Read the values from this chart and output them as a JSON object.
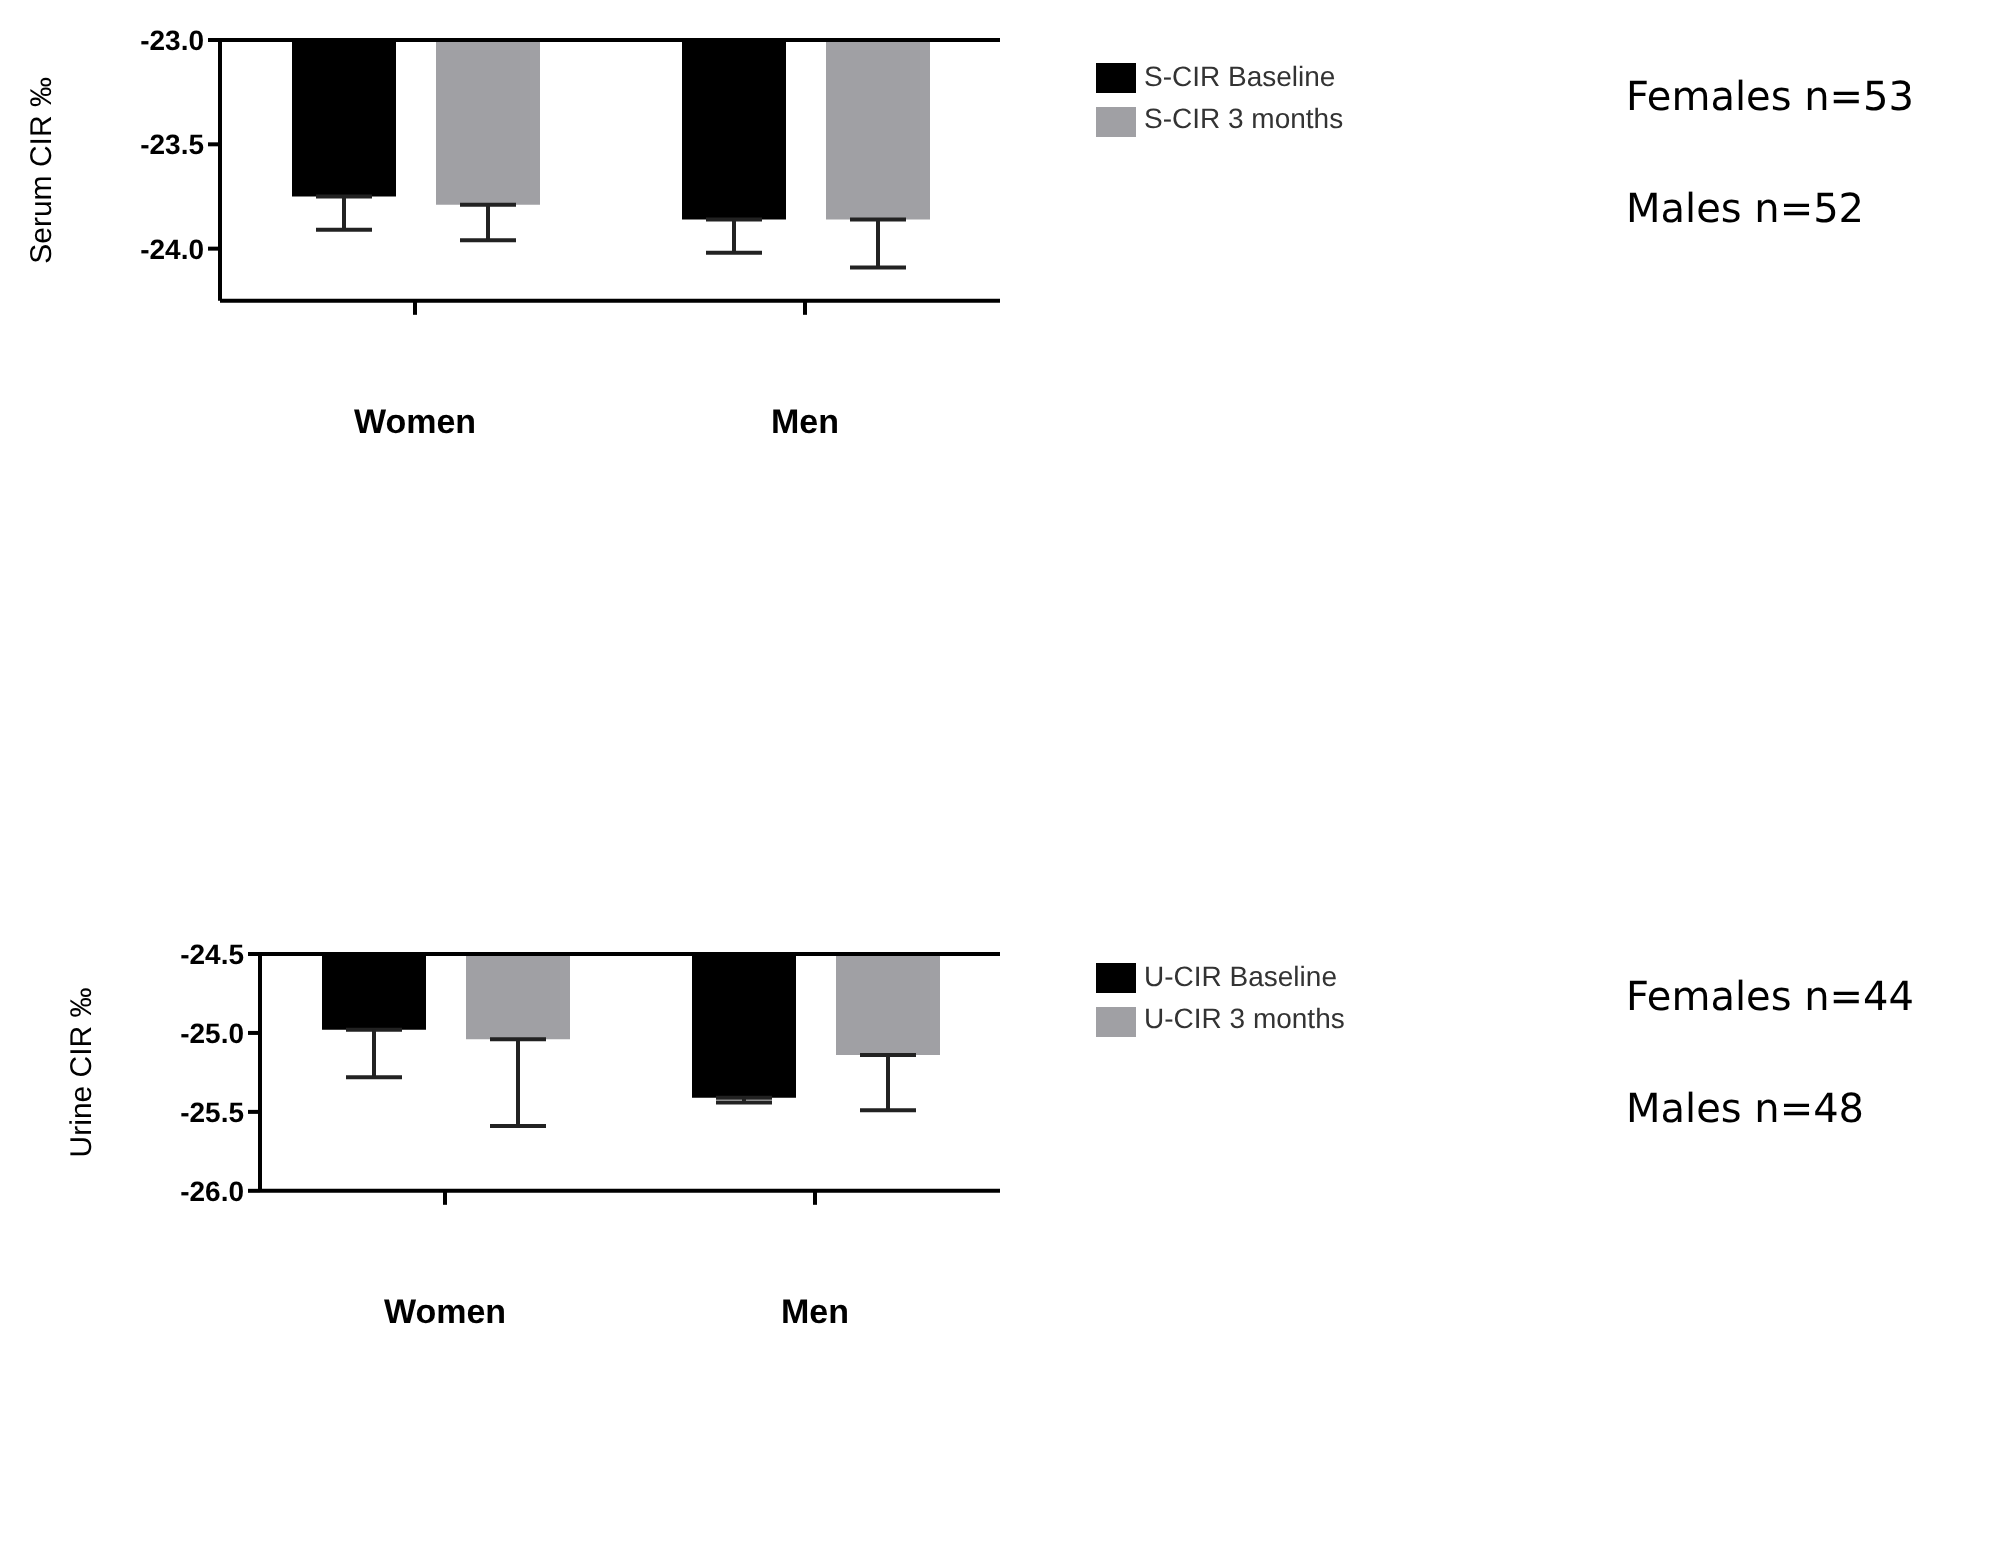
{
  "chart_data": [
    {
      "type": "bar",
      "ylabel": "Serum CIR ‰",
      "categories": [
        "Women",
        "Men"
      ],
      "series": [
        {
          "name": "S-CIR Baseline",
          "color": "#000000",
          "values": [
            -23.75,
            -23.86
          ],
          "errors": [
            [
              -23.91,
              -23.75
            ],
            [
              -24.02,
              -23.86
            ]
          ]
        },
        {
          "name": "S-CIR 3 months",
          "color": "#a0a0a4",
          "values": [
            -23.79,
            -23.86
          ],
          "errors": [
            [
              -23.96,
              -23.79
            ],
            [
              -24.09,
              -23.86
            ]
          ]
        }
      ],
      "ylim": [
        -24.25,
        -23.0
      ],
      "yticks": [
        {
          "value": -23.0,
          "label": "-23.0"
        },
        -23.5,
        {
          "value": -24.0,
          "label": "-24.0"
        }
      ],
      "grid": false,
      "legend": "right",
      "annotations": [
        "Females n=53",
        "Males n=52"
      ]
    },
    {
      "type": "bar",
      "ylabel": "Urine CIR ‰",
      "categories": [
        "Women",
        "Men"
      ],
      "series": [
        {
          "name": "U-CIR Baseline",
          "color": "#000000",
          "values": [
            -24.98,
            -25.41
          ],
          "errors": [
            [
              -25.28,
              -24.98
            ],
            [
              -25.44,
              -25.41
            ]
          ]
        },
        {
          "name": "U-CIR 3 months",
          "color": "#a0a0a4",
          "values": [
            -25.04,
            -25.14
          ],
          "errors": [
            [
              -25.59,
              -25.04
            ],
            [
              -25.49,
              -25.14
            ]
          ]
        }
      ],
      "ylim": [
        -26.0,
        -24.5
      ],
      "yticks": [
        -24.5,
        {
          "value": -25.0,
          "label": "-25.0"
        },
        -25.5,
        {
          "value": -26.0,
          "label": "-26.0"
        }
      ],
      "grid": false,
      "legend": "right",
      "annotations": [
        "Females n=44",
        "Males n=48"
      ]
    }
  ]
}
